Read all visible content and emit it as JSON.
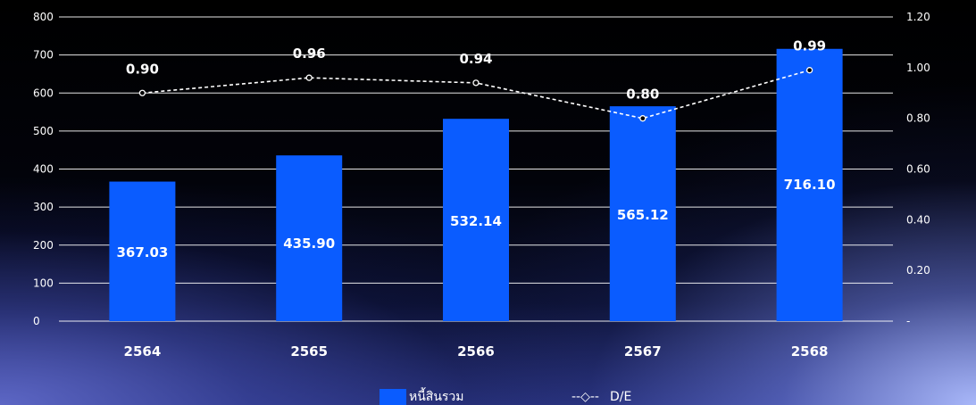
{
  "chart_data": {
    "type": "bar",
    "categories": [
      "2564",
      "2565",
      "2566",
      "2567",
      "2568"
    ],
    "series": [
      {
        "name": "หนี้สินรวม",
        "type": "bar",
        "axis": "left",
        "values": [
          367.03,
          435.9,
          532.14,
          565.12,
          716.1
        ],
        "labels": [
          "367.03",
          "435.90",
          "532.14",
          "565.12",
          "716.10"
        ],
        "color": "#0a5cff"
      },
      {
        "name": "D/E",
        "type": "line",
        "axis": "right",
        "values": [
          0.9,
          0.96,
          0.94,
          0.8,
          0.99
        ],
        "labels": [
          "0.90",
          "0.96",
          "0.94",
          "0.80",
          "0.99"
        ],
        "color": "#ffffff",
        "line_style": "dashed"
      }
    ],
    "y_left": {
      "ylim": [
        0,
        800
      ],
      "ticks": [
        0,
        100,
        200,
        300,
        400,
        500,
        600,
        700,
        800
      ],
      "tick_labels": [
        "0",
        "100",
        "200",
        "300",
        "400",
        "500",
        "600",
        "700",
        "800"
      ]
    },
    "y_right": {
      "ylim": [
        0,
        1.2
      ],
      "ticks": [
        0,
        0.2,
        0.4,
        0.6,
        0.8,
        1.0,
        1.2
      ],
      "tick_labels": [
        "-",
        "0.20",
        "0.40",
        "0.60",
        "0.80",
        "1.00",
        "1.20"
      ]
    },
    "grid": true,
    "legend": {
      "position": "bottom",
      "items": [
        {
          "label": "หนี้สินรวม",
          "symbol": "bar"
        },
        {
          "label": "D/E",
          "symbol": "dashed-line-marker",
          "prefix": "--◇--"
        }
      ]
    }
  }
}
